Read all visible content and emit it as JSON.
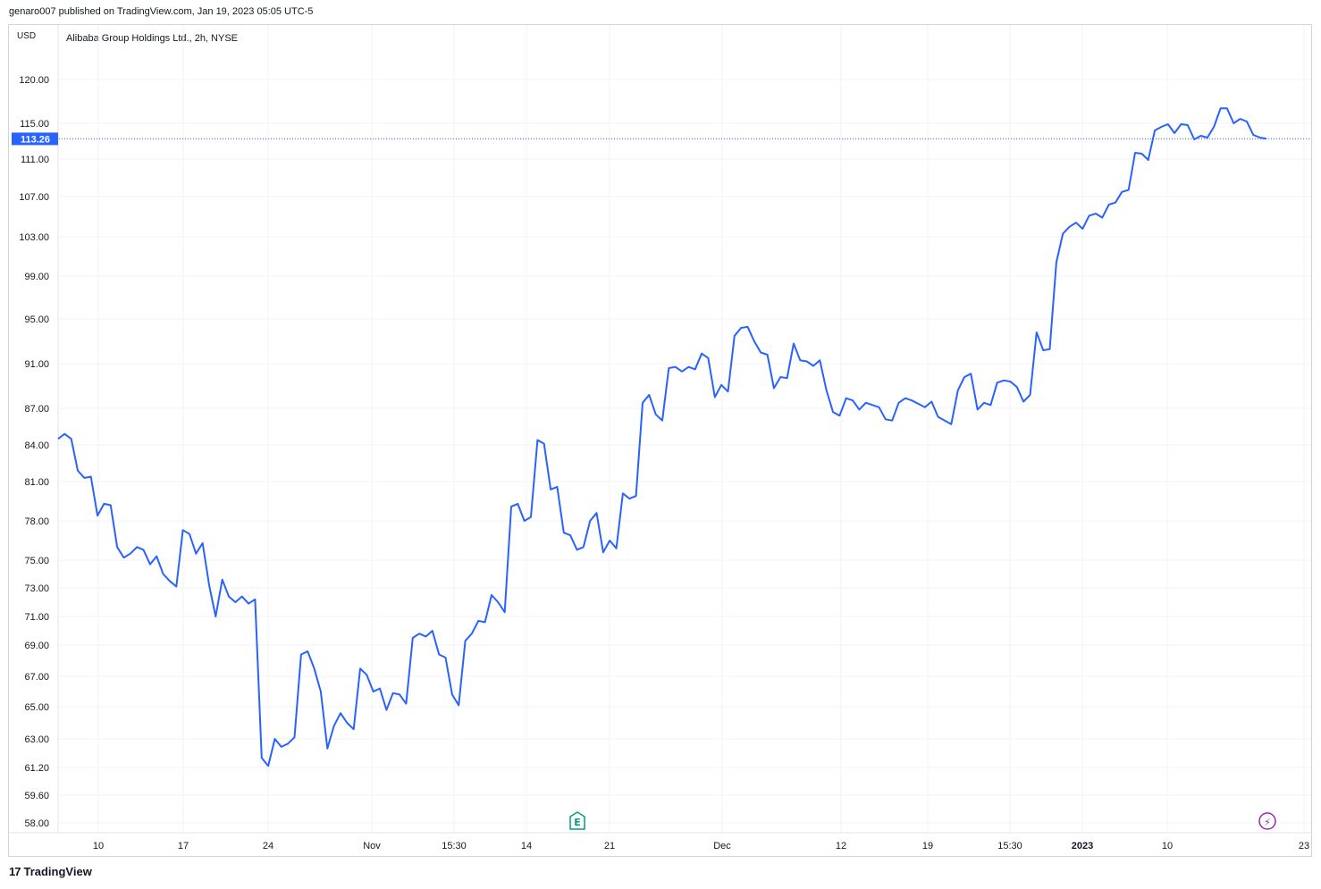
{
  "header": {
    "publisher_text": "genaro007 published on TradingView.com, Jan 19, 2023 05:05 UTC-5"
  },
  "symbol": {
    "title": "Alibaba Group Holdings Ltd., 2h, NYSE",
    "currency": "USD"
  },
  "footer": {
    "brand": "TradingView",
    "logo": "17"
  },
  "colors": {
    "line": "#2962ff",
    "grid": "#f0f3fa",
    "text": "#131722",
    "last_price_bg": "#2962ff"
  },
  "events": [
    {
      "icon": "earnings-icon",
      "glyph": "E",
      "x": 134.5,
      "color": "#089981"
    },
    {
      "icon": "dividend-lightning-icon",
      "glyph": "⚡",
      "x": 271.5,
      "color": "#9c27b0"
    }
  ],
  "chart_data": {
    "type": "line",
    "title": "Alibaba Group Holdings Ltd., 2h, NYSE",
    "ylabel": "USD",
    "ylim": [
      57.6,
      124
    ],
    "last_price": 113.26,
    "y_ticks": [
      120.0,
      115.0,
      111.0,
      107.0,
      103.0,
      99.0,
      95.0,
      91.0,
      87.0,
      84.0,
      81.0,
      78.0,
      75.0,
      73.0,
      71.0,
      69.0,
      67.0,
      65.0,
      63.0,
      61.2,
      59.6,
      58.0
    ],
    "y_tick_labels": [
      "120.00",
      "115.00",
      "111.00",
      "107.00",
      "103.00",
      "99.00",
      "95.00",
      "91.00",
      "87.00",
      "84.00",
      "81.00",
      "78.00",
      "75.00",
      "73.00",
      "71.00",
      "69.00",
      "67.00",
      "65.00",
      "63.00",
      "61.20",
      "59.60",
      "58.00"
    ],
    "x_ticks": [
      {
        "label": "10",
        "x": 10,
        "bold": false
      },
      {
        "label": "17",
        "x": 29,
        "bold": false
      },
      {
        "label": "24",
        "x": 48,
        "bold": false
      },
      {
        "label": "Nov",
        "x": 66,
        "bold": false
      },
      {
        "label": "15:30",
        "x": 80.5,
        "bold": false
      },
      {
        "label": "14",
        "x": 105,
        "bold": false
      },
      {
        "label": "21",
        "x": 124,
        "bold": false
      },
      {
        "label": "Dec",
        "x": 149.5,
        "bold": false
      },
      {
        "label": "12",
        "x": 177.5,
        "bold": false
      },
      {
        "label": "19",
        "x": 196,
        "bold": false
      },
      {
        "label": "15:30",
        "x": 211.5,
        "bold": false
      },
      {
        "label": "2023",
        "x": 227.5,
        "bold": true
      },
      {
        "label": "10",
        "x": 246.5,
        "bold": false
      },
      {
        "label": "23",
        "x": 277.5,
        "bold": false
      }
    ],
    "xlim": [
      1,
      279
    ],
    "series": [
      {
        "points": [
          [
            1,
            84.5
          ],
          [
            2,
            84.9
          ],
          [
            3,
            84.5
          ],
          [
            4,
            81.9
          ],
          [
            5,
            81.3
          ],
          [
            6,
            81.4
          ],
          [
            7,
            78.4
          ],
          [
            8,
            79.3
          ],
          [
            9,
            79.2
          ],
          [
            10,
            76.0
          ],
          [
            11,
            75.2
          ],
          [
            12,
            75.5
          ],
          [
            13,
            76.0
          ],
          [
            14,
            75.8
          ],
          [
            15,
            74.7
          ],
          [
            16,
            75.3
          ],
          [
            17,
            74.0
          ],
          [
            18,
            73.5
          ],
          [
            19,
            73.1
          ],
          [
            20,
            77.3
          ],
          [
            21,
            77.0
          ],
          [
            22,
            75.5
          ],
          [
            23,
            76.3
          ],
          [
            24,
            73.2
          ],
          [
            25,
            71.0
          ],
          [
            26,
            73.6
          ],
          [
            27,
            72.4
          ],
          [
            28,
            72.0
          ],
          [
            29,
            72.4
          ],
          [
            30,
            71.9
          ],
          [
            31,
            72.2
          ],
          [
            32,
            61.8
          ],
          [
            33,
            61.3
          ],
          [
            34,
            63.0
          ],
          [
            35,
            62.5
          ],
          [
            36,
            62.7
          ],
          [
            37,
            63.1
          ],
          [
            38,
            68.4
          ],
          [
            39,
            68.6
          ],
          [
            40,
            67.5
          ],
          [
            41,
            66.0
          ],
          [
            42,
            62.4
          ],
          [
            43,
            63.8
          ],
          [
            44,
            64.6
          ],
          [
            45,
            64.0
          ],
          [
            46,
            63.6
          ],
          [
            47,
            67.5
          ],
          [
            48,
            67.1
          ],
          [
            49,
            66.0
          ],
          [
            50,
            66.2
          ],
          [
            51,
            64.8
          ],
          [
            52,
            65.9
          ],
          [
            53,
            65.8
          ],
          [
            54,
            65.2
          ],
          [
            55,
            69.5
          ],
          [
            56,
            69.8
          ],
          [
            57,
            69.6
          ],
          [
            58,
            70.0
          ],
          [
            59,
            68.4
          ],
          [
            60,
            68.2
          ],
          [
            61,
            65.8
          ],
          [
            62,
            65.1
          ],
          [
            63,
            69.3
          ],
          [
            64,
            69.8
          ],
          [
            65,
            70.7
          ],
          [
            66,
            70.6
          ],
          [
            67,
            72.5
          ],
          [
            68,
            72.0
          ],
          [
            69,
            71.3
          ],
          [
            70,
            79.1
          ],
          [
            71,
            79.3
          ],
          [
            72,
            78.0
          ],
          [
            73,
            78.3
          ],
          [
            74,
            84.4
          ],
          [
            75,
            84.1
          ],
          [
            76,
            80.4
          ],
          [
            77,
            80.6
          ],
          [
            78,
            77.1
          ],
          [
            79,
            76.9
          ],
          [
            80,
            75.8
          ],
          [
            81,
            76.0
          ],
          [
            82,
            78.0
          ],
          [
            83,
            78.6
          ],
          [
            84,
            75.6
          ],
          [
            85,
            76.5
          ],
          [
            86,
            75.9
          ],
          [
            87,
            80.1
          ],
          [
            88,
            79.7
          ],
          [
            89,
            79.9
          ],
          [
            90,
            87.5
          ],
          [
            91,
            88.2
          ],
          [
            92,
            86.5
          ],
          [
            93,
            86.0
          ],
          [
            94,
            90.6
          ],
          [
            95,
            90.7
          ],
          [
            96,
            90.3
          ],
          [
            97,
            90.7
          ],
          [
            98,
            90.5
          ],
          [
            99,
            91.9
          ],
          [
            100,
            91.5
          ],
          [
            101,
            88.0
          ],
          [
            102,
            89.1
          ],
          [
            103,
            88.5
          ],
          [
            104,
            93.5
          ],
          [
            105,
            94.2
          ],
          [
            106,
            94.3
          ],
          [
            107,
            93.0
          ],
          [
            108,
            92.0
          ],
          [
            109,
            91.8
          ],
          [
            110,
            88.8
          ],
          [
            111,
            89.8
          ],
          [
            112,
            89.7
          ],
          [
            113,
            92.8
          ],
          [
            114,
            91.3
          ],
          [
            115,
            91.2
          ],
          [
            116,
            90.8
          ],
          [
            117,
            91.3
          ],
          [
            118,
            88.6
          ],
          [
            119,
            86.7
          ],
          [
            120,
            86.4
          ],
          [
            121,
            87.9
          ],
          [
            122,
            87.7
          ],
          [
            123,
            86.9
          ],
          [
            124,
            87.5
          ],
          [
            125,
            87.3
          ],
          [
            126,
            87.1
          ],
          [
            127,
            86.1
          ],
          [
            128,
            86.0
          ],
          [
            129,
            87.5
          ],
          [
            130,
            87.9
          ],
          [
            131,
            87.7
          ],
          [
            132,
            87.4
          ],
          [
            133,
            87.1
          ],
          [
            134,
            87.6
          ],
          [
            135,
            86.3
          ],
          [
            136,
            86.0
          ],
          [
            137,
            85.7
          ],
          [
            138,
            88.6
          ],
          [
            139,
            89.8
          ],
          [
            140,
            90.1
          ],
          [
            141,
            86.9
          ],
          [
            142,
            87.5
          ],
          [
            143,
            87.3
          ],
          [
            144,
            89.3
          ],
          [
            145,
            89.5
          ],
          [
            146,
            89.4
          ],
          [
            147,
            88.9
          ],
          [
            148,
            87.6
          ],
          [
            149,
            88.2
          ],
          [
            150,
            93.8
          ],
          [
            151,
            92.2
          ],
          [
            152,
            92.3
          ],
          [
            153,
            100.4
          ],
          [
            154,
            103.3
          ],
          [
            155,
            104.0
          ],
          [
            156,
            104.4
          ],
          [
            157,
            103.8
          ],
          [
            158,
            105.1
          ],
          [
            159,
            105.3
          ],
          [
            160,
            104.9
          ],
          [
            161,
            106.2
          ],
          [
            162,
            106.4
          ],
          [
            163,
            107.5
          ],
          [
            164,
            107.7
          ],
          [
            165,
            111.7
          ],
          [
            166,
            111.6
          ],
          [
            167,
            110.9
          ],
          [
            168,
            114.2
          ],
          [
            169,
            114.6
          ],
          [
            170,
            114.9
          ],
          [
            171,
            113.9
          ],
          [
            172,
            114.9
          ],
          [
            173,
            114.8
          ],
          [
            174,
            113.2
          ],
          [
            175,
            113.6
          ],
          [
            176,
            113.4
          ],
          [
            177,
            114.6
          ],
          [
            178,
            116.7
          ],
          [
            179,
            116.7
          ],
          [
            180,
            115.0
          ],
          [
            181,
            115.5
          ],
          [
            182,
            115.2
          ],
          [
            183,
            113.7
          ],
          [
            184,
            113.4
          ],
          [
            185,
            113.26
          ]
        ]
      }
    ]
  }
}
